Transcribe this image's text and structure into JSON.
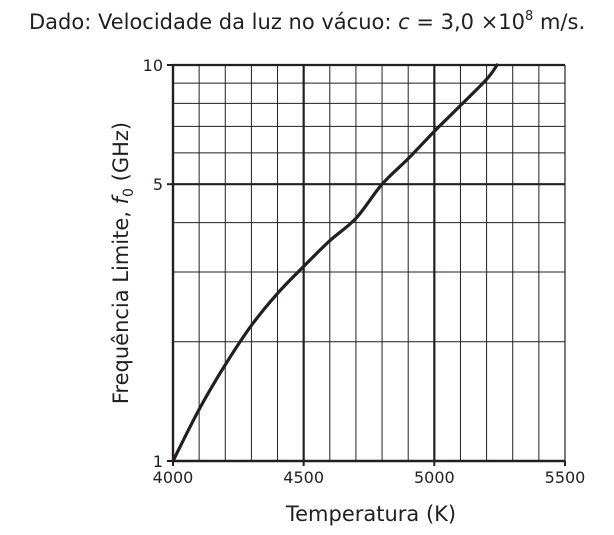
{
  "note": {
    "prefix": "Dado: Velocidade da luz no vácuo: ",
    "symbol": "c",
    "middle": " = 3,0 ×10",
    "exponent": "8",
    "suffix": " m/s."
  },
  "chart_data": {
    "type": "line",
    "xlabel": "Temperatura (K)",
    "ylabel": {
      "before": "Frequência Limite, ",
      "symbol": "f",
      "subscript": "0",
      "after": " (GHz)"
    },
    "xlim": [
      4000,
      5500
    ],
    "ylim": [
      1,
      10
    ],
    "y_scale": "log",
    "x_ticks": [
      4000,
      4500,
      5000,
      5500
    ],
    "x_tick_labels": [
      "4000",
      "4500",
      "5000",
      "5500"
    ],
    "x_minor_step": 100,
    "y_ticks": [
      1,
      5,
      10
    ],
    "y_tick_labels": [
      "1",
      "5",
      "10"
    ],
    "y_minor": [
      2,
      3,
      4,
      6,
      7,
      8,
      9
    ],
    "grid": true,
    "series": [
      {
        "x": [
          4000,
          4100,
          4200,
          4300,
          4400,
          4500,
          4600,
          4700,
          4800,
          4900,
          5000,
          5100,
          5200,
          5240
        ],
        "y": [
          1.0,
          1.35,
          1.75,
          2.2,
          2.65,
          3.1,
          3.6,
          4.1,
          5.0,
          5.8,
          6.8,
          7.9,
          9.2,
          10.0
        ]
      }
    ]
  }
}
